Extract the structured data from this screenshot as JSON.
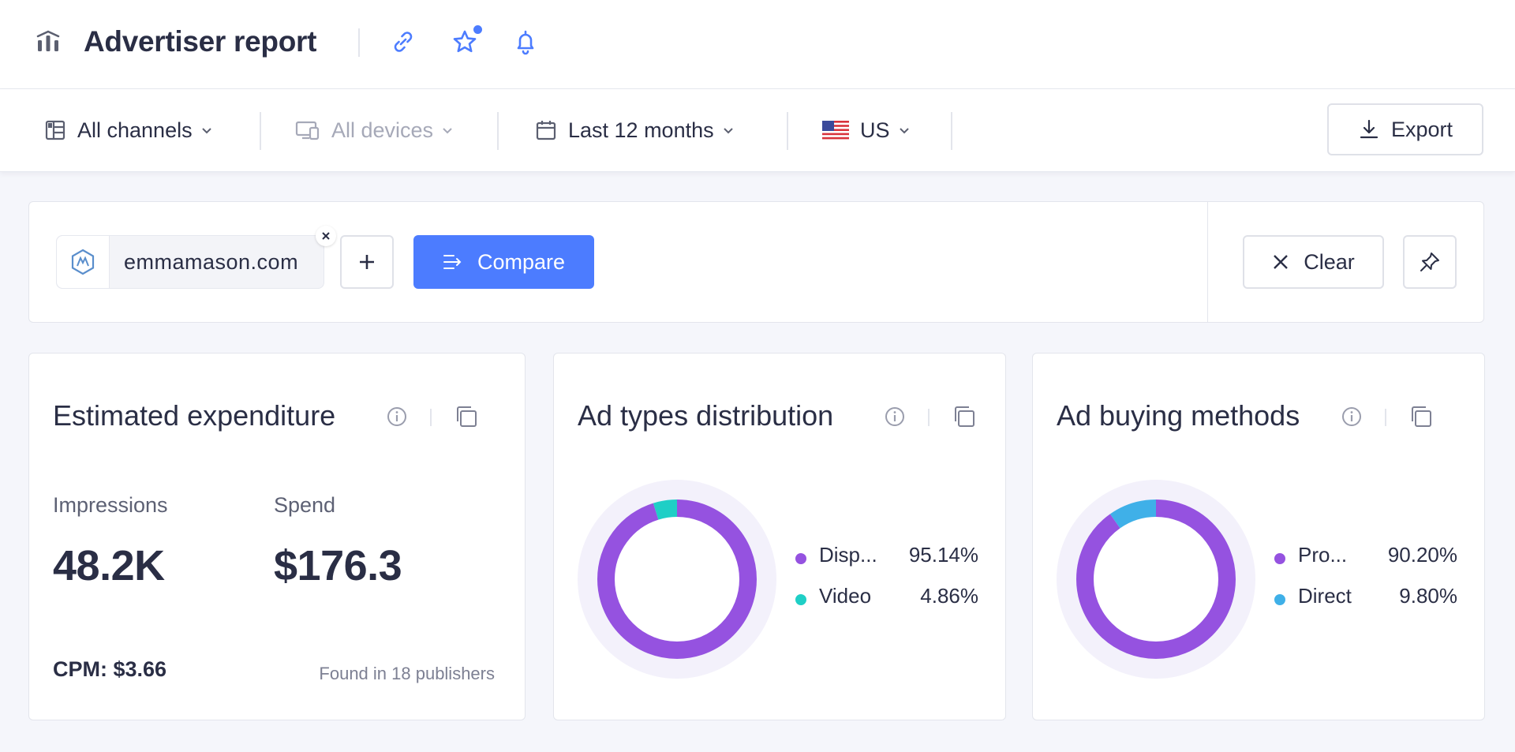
{
  "header": {
    "title": "Advertiser report",
    "icons": [
      "report-icon",
      "link-icon",
      "star-icon",
      "bell-icon"
    ]
  },
  "filters": {
    "channels": "All channels",
    "devices": "All devices",
    "period": "Last 12 months",
    "country": "US",
    "export_label": "Export"
  },
  "compare": {
    "domain": "emmamason.com",
    "compare_label": "Compare",
    "clear_label": "Clear"
  },
  "colors": {
    "accent": "#4c7cff",
    "purple": "#9552e0",
    "teal": "#1fcfc6",
    "sky": "#3fb0e8"
  },
  "expenditure": {
    "title": "Estimated expenditure",
    "impressions_label": "Impressions",
    "impressions_value": "48.2K",
    "spend_label": "Spend",
    "spend_value": "$176.3",
    "cpm": "CPM: $3.66",
    "publishers": "Found in 18 publishers"
  },
  "ad_types": {
    "title": "Ad types distribution",
    "items": [
      {
        "name": "Disp...",
        "value": "95.14%",
        "pct": 95.14,
        "color": "#9552e0"
      },
      {
        "name": "Video",
        "value": "4.86%",
        "pct": 4.86,
        "color": "#1fcfc6"
      }
    ]
  },
  "ad_buying": {
    "title": "Ad buying methods",
    "items": [
      {
        "name": "Pro...",
        "value": "90.20%",
        "pct": 90.2,
        "color": "#9552e0"
      },
      {
        "name": "Direct",
        "value": "9.80%",
        "pct": 9.8,
        "color": "#3fb0e8"
      }
    ]
  },
  "chart_data": [
    {
      "type": "pie",
      "title": "Ad types distribution",
      "categories": [
        "Disp...",
        "Video"
      ],
      "values": [
        95.14,
        4.86
      ]
    },
    {
      "type": "pie",
      "title": "Ad buying methods",
      "categories": [
        "Pro...",
        "Direct"
      ],
      "values": [
        90.2,
        9.8
      ]
    }
  ]
}
